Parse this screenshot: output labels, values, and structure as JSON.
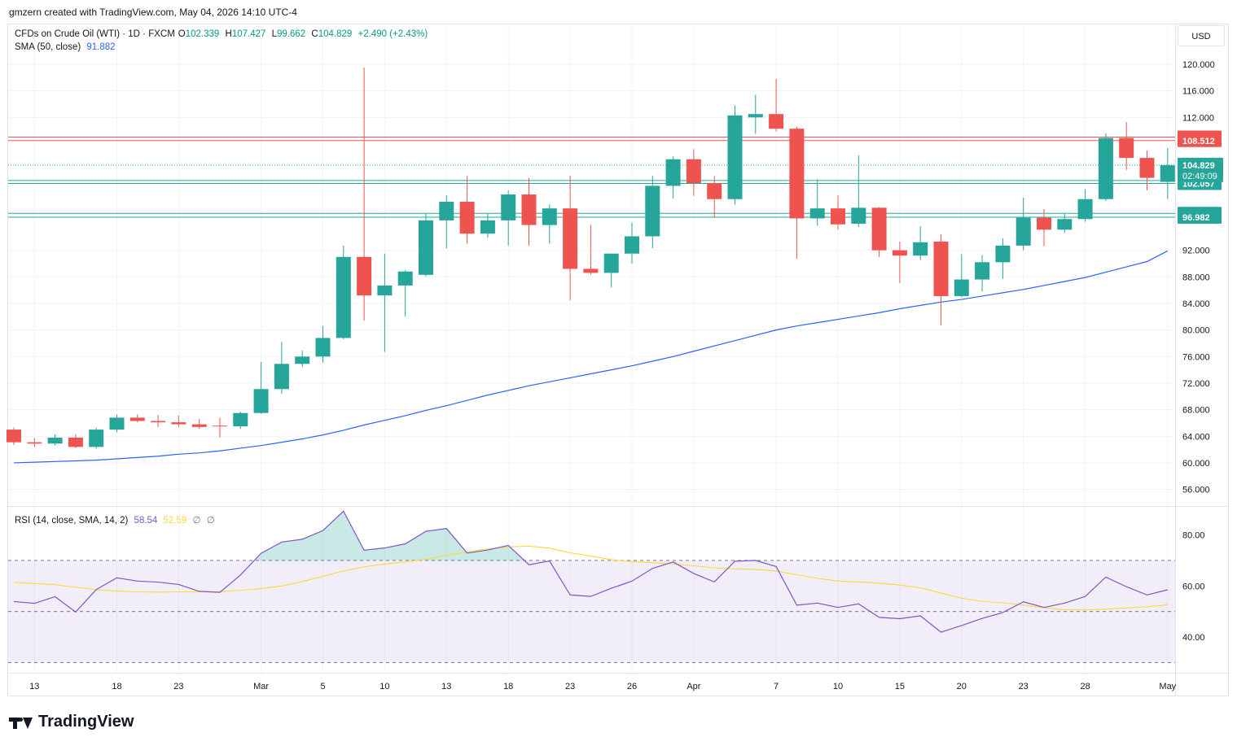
{
  "header": {
    "text": "gmzern created with TradingView.com, May 04, 2026 14:10 UTC-4"
  },
  "legend": {
    "symbol": "CFDs on Crude Oil (WTI) · 1D · FXCM",
    "o_label": "O",
    "o_value": "102.339",
    "h_label": "H",
    "h_value": "107.427",
    "l_label": "L",
    "l_value": "99.662",
    "c_label": "C",
    "c_value": "104.829",
    "change": "+2.490 (+2.43%)",
    "sma_label": "SMA (50, close)",
    "sma_value": "91.882"
  },
  "rsi_legend": {
    "label": "RSI (14, close, SMA, 14, 2)",
    "rsi_value": "58.54",
    "sma_value": "52.59",
    "extra1": "∅",
    "extra2": "∅"
  },
  "currency": "USD",
  "footer": {
    "brand": "TradingView"
  },
  "colors": {
    "up": "#26a69a",
    "down": "#ef5350",
    "sma": "#2962ff",
    "rsi": "#7e57c2",
    "rsi_sma": "#fdd835"
  },
  "chart_data": [
    {
      "type": "candlestick",
      "y_ticks": [
        "120.000",
        "116.000",
        "112.000",
        "92.000",
        "88.000",
        "84.000",
        "80.000",
        "76.000",
        "72.000",
        "68.000",
        "64.000",
        "60.000",
        "56.000"
      ],
      "x_ticks": [
        "13",
        "18",
        "23",
        "Mar",
        "5",
        "10",
        "13",
        "18",
        "23",
        "26",
        "Apr",
        "7",
        "10",
        "15",
        "20",
        "23",
        "28",
        "May"
      ],
      "ylim": [
        53.5,
        126
      ],
      "candles": [
        {
          "o": 65.0,
          "h": 65.3,
          "l": 62.7,
          "c": 63.1
        },
        {
          "o": 63.1,
          "h": 63.7,
          "l": 62.4,
          "c": 62.9
        },
        {
          "o": 62.9,
          "h": 64.3,
          "l": 62.6,
          "c": 63.8
        },
        {
          "o": 63.8,
          "h": 64.3,
          "l": 62.2,
          "c": 62.4
        },
        {
          "o": 62.4,
          "h": 65.3,
          "l": 62.1,
          "c": 65.0
        },
        {
          "o": 65.0,
          "h": 67.3,
          "l": 64.6,
          "c": 66.8
        },
        {
          "o": 66.8,
          "h": 67.3,
          "l": 66.1,
          "c": 66.3
        },
        {
          "o": 66.3,
          "h": 67.2,
          "l": 65.4,
          "c": 66.1
        },
        {
          "o": 66.1,
          "h": 67.1,
          "l": 65.4,
          "c": 65.8
        },
        {
          "o": 65.8,
          "h": 66.6,
          "l": 65.1,
          "c": 65.4
        },
        {
          "o": 65.6,
          "h": 66.8,
          "l": 63.8,
          "c": 65.5
        },
        {
          "o": 65.5,
          "h": 67.7,
          "l": 65.1,
          "c": 67.5
        },
        {
          "o": 67.5,
          "h": 75.2,
          "l": 67.4,
          "c": 71.1
        },
        {
          "o": 71.1,
          "h": 78.2,
          "l": 70.4,
          "c": 74.9
        },
        {
          "o": 74.9,
          "h": 76.9,
          "l": 74.4,
          "c": 76.0
        },
        {
          "o": 76.0,
          "h": 80.6,
          "l": 75.1,
          "c": 78.8
        },
        {
          "o": 78.8,
          "h": 92.7,
          "l": 78.6,
          "c": 91.0
        },
        {
          "o": 91.0,
          "h": 119.5,
          "l": 81.4,
          "c": 85.2
        },
        {
          "o": 85.2,
          "h": 91.5,
          "l": 76.7,
          "c": 86.7
        },
        {
          "o": 86.7,
          "h": 89.0,
          "l": 82.0,
          "c": 88.8
        },
        {
          "o": 88.3,
          "h": 97.5,
          "l": 88.1,
          "c": 96.5
        },
        {
          "o": 96.5,
          "h": 100.3,
          "l": 92.3,
          "c": 99.3
        },
        {
          "o": 99.3,
          "h": 103.2,
          "l": 93.0,
          "c": 94.5
        },
        {
          "o": 94.5,
          "h": 97.5,
          "l": 93.9,
          "c": 96.5
        },
        {
          "o": 96.5,
          "h": 101.0,
          "l": 92.7,
          "c": 100.4
        },
        {
          "o": 100.4,
          "h": 102.9,
          "l": 92.7,
          "c": 95.8
        },
        {
          "o": 95.8,
          "h": 98.9,
          "l": 93.0,
          "c": 98.3
        },
        {
          "o": 98.3,
          "h": 103.2,
          "l": 84.5,
          "c": 89.2
        },
        {
          "o": 89.2,
          "h": 95.8,
          "l": 88.3,
          "c": 88.6
        },
        {
          "o": 88.6,
          "h": 91.5,
          "l": 86.4,
          "c": 91.5
        },
        {
          "o": 91.5,
          "h": 96.2,
          "l": 90.0,
          "c": 94.1
        },
        {
          "o": 94.1,
          "h": 103.2,
          "l": 92.3,
          "c": 101.7
        },
        {
          "o": 101.7,
          "h": 106.1,
          "l": 99.8,
          "c": 105.7
        },
        {
          "o": 105.7,
          "h": 107.2,
          "l": 100.2,
          "c": 102.1
        },
        {
          "o": 102.1,
          "h": 103.2,
          "l": 96.9,
          "c": 99.7
        },
        {
          "o": 99.7,
          "h": 113.8,
          "l": 98.9,
          "c": 112.3
        },
        {
          "o": 112.0,
          "h": 115.4,
          "l": 109.5,
          "c": 112.5
        },
        {
          "o": 112.5,
          "h": 117.8,
          "l": 109.9,
          "c": 110.3
        },
        {
          "o": 110.3,
          "h": 110.6,
          "l": 90.7,
          "c": 96.8
        },
        {
          "o": 96.8,
          "h": 102.7,
          "l": 95.7,
          "c": 98.3
        },
        {
          "o": 98.3,
          "h": 100.2,
          "l": 95.1,
          "c": 95.9
        },
        {
          "o": 96.0,
          "h": 106.3,
          "l": 95.5,
          "c": 98.4
        },
        {
          "o": 98.4,
          "h": 98.5,
          "l": 91.0,
          "c": 92.0
        },
        {
          "o": 92.0,
          "h": 93.3,
          "l": 87.1,
          "c": 91.2
        },
        {
          "o": 91.2,
          "h": 95.6,
          "l": 90.5,
          "c": 93.2
        },
        {
          "o": 93.3,
          "h": 94.4,
          "l": 80.7,
          "c": 85.1
        },
        {
          "o": 85.1,
          "h": 91.4,
          "l": 84.9,
          "c": 87.6
        },
        {
          "o": 87.6,
          "h": 91.3,
          "l": 85.8,
          "c": 90.2
        },
        {
          "o": 90.2,
          "h": 93.8,
          "l": 87.7,
          "c": 92.7
        },
        {
          "o": 92.7,
          "h": 99.9,
          "l": 92.0,
          "c": 96.9
        },
        {
          "o": 96.9,
          "h": 98.2,
          "l": 92.6,
          "c": 95.1
        },
        {
          "o": 95.1,
          "h": 97.5,
          "l": 94.6,
          "c": 96.7
        },
        {
          "o": 96.7,
          "h": 101.2,
          "l": 96.3,
          "c": 99.7
        },
        {
          "o": 99.7,
          "h": 109.6,
          "l": 99.4,
          "c": 108.9
        },
        {
          "o": 108.9,
          "h": 111.3,
          "l": 104.1,
          "c": 105.9
        },
        {
          "o": 105.9,
          "h": 107.0,
          "l": 101.0,
          "c": 102.9
        },
        {
          "o": 102.3,
          "h": 107.4,
          "l": 99.7,
          "c": 104.8
        }
      ],
      "sma": [
        60.0,
        60.1,
        60.2,
        60.3,
        60.4,
        60.6,
        60.8,
        61.0,
        61.3,
        61.5,
        61.8,
        62.2,
        62.6,
        63.1,
        63.6,
        64.2,
        64.9,
        65.7,
        66.4,
        67.1,
        67.9,
        68.6,
        69.4,
        70.2,
        70.9,
        71.6,
        72.2,
        72.8,
        73.4,
        74.0,
        74.6,
        75.3,
        76.0,
        76.8,
        77.6,
        78.4,
        79.2,
        80.0,
        80.6,
        81.1,
        81.6,
        82.1,
        82.6,
        83.2,
        83.7,
        84.2,
        84.6,
        85.1,
        85.6,
        86.1,
        86.7,
        87.3,
        87.9,
        88.7,
        89.5,
        90.3,
        91.9
      ],
      "h_lines": [
        {
          "value": 109.042,
          "label": "109.042",
          "kind": "resistance"
        },
        {
          "value": 108.512,
          "label": "108.512",
          "kind": "resistance"
        },
        {
          "value": 102.503,
          "label": "102.503",
          "kind": "support"
        },
        {
          "value": 102.057,
          "label": "102.057",
          "kind": "support"
        },
        {
          "value": 97.554,
          "label": "97.554",
          "kind": "support"
        },
        {
          "value": 96.982,
          "label": "96.982",
          "kind": "support"
        }
      ],
      "last_price": {
        "value": 104.829,
        "label": "104.829",
        "countdown": "02:49:09"
      }
    },
    {
      "type": "line",
      "name": "RSI",
      "y_ticks": [
        "80.00",
        "60.00",
        "40.00"
      ],
      "ylim": [
        26,
        91
      ],
      "bands": {
        "upper": 70,
        "middle": 50,
        "lower": 30
      },
      "rsi": [
        53.9,
        53.2,
        55.8,
        49.8,
        58.6,
        63.2,
        61.9,
        61.5,
        60.6,
        57.9,
        57.5,
        64.3,
        72.8,
        77.2,
        78.3,
        81.7,
        89.3,
        74.0,
        74.9,
        76.5,
        81.4,
        82.5,
        72.9,
        74.1,
        75.9,
        68.3,
        69.8,
        56.5,
        55.9,
        59.1,
        61.9,
        66.9,
        69.4,
        64.9,
        61.6,
        69.7,
        70.0,
        67.6,
        52.5,
        53.3,
        51.6,
        53.0,
        47.7,
        47.2,
        48.3,
        41.9,
        44.5,
        47.3,
        49.6,
        53.8,
        51.6,
        53.3,
        55.9,
        63.5,
        59.7,
        56.5,
        58.5
      ],
      "rsi_sma": [
        61.4,
        61.0,
        60.5,
        59.5,
        58.6,
        58.0,
        57.7,
        57.6,
        57.7,
        57.7,
        57.8,
        58.3,
        59.0,
        60.0,
        61.7,
        63.8,
        65.9,
        67.5,
        68.6,
        69.4,
        70.5,
        72.0,
        73.4,
        74.5,
        75.3,
        75.6,
        74.8,
        73.0,
        71.7,
        70.3,
        69.5,
        69.1,
        68.6,
        67.9,
        67.1,
        66.7,
        66.5,
        65.9,
        64.4,
        63.0,
        61.9,
        61.6,
        61.1,
        60.4,
        59.3,
        57.2,
        55.2,
        54.0,
        53.4,
        52.5,
        51.5,
        50.7,
        50.6,
        50.9,
        51.4,
        51.9,
        52.6
      ]
    }
  ]
}
